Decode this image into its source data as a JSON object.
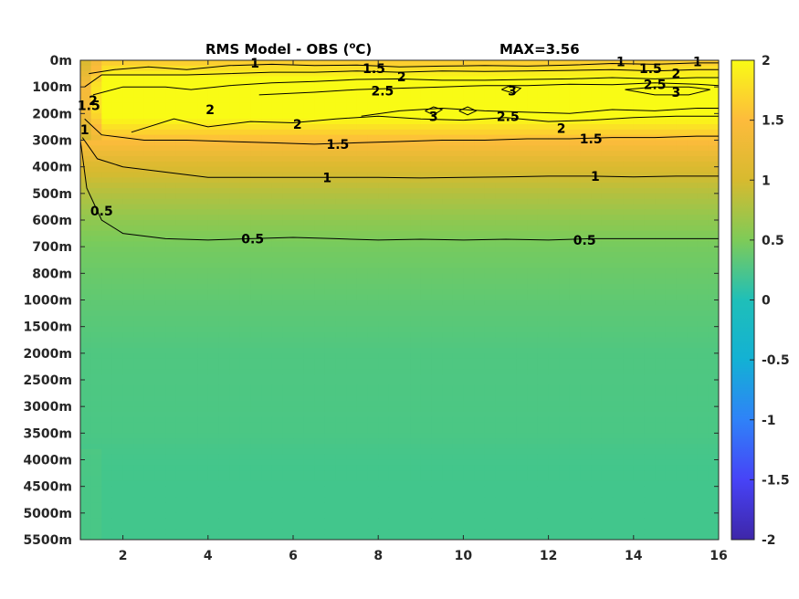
{
  "chart_data": {
    "type": "heatmap",
    "title": "RMS Model - OBS (",
    "title_sup": "o",
    "title_unit": "C)",
    "annotation": "MAX=3.56",
    "x_ticks": [
      "2",
      "4",
      "6",
      "8",
      "10",
      "12",
      "14",
      "16"
    ],
    "x_tick_values": [
      2,
      4,
      6,
      8,
      10,
      12,
      14,
      16
    ],
    "xlim": [
      1,
      16
    ],
    "depth_labels": [
      "0m",
      "100m",
      "200m",
      "300m",
      "400m",
      "500m",
      "600m",
      "700m",
      "800m",
      "1000m",
      "1500m",
      "2000m",
      "2500m",
      "3000m",
      "3500m",
      "4000m",
      "4500m",
      "5000m",
      "5500m"
    ],
    "colorbar_ticks": [
      "2",
      "1.5",
      "1",
      "0.5",
      "0",
      "-0.5",
      "-1",
      "-1.5",
      "-2"
    ],
    "colorbar_values": [
      2,
      1.5,
      1,
      0.5,
      0,
      -0.5,
      -1,
      -1.5,
      -2
    ],
    "clim": [
      -2,
      2
    ],
    "colormap": [
      "#3e26a8",
      "#4743f7",
      "#2f82f8",
      "#13b1d4",
      "#2bc4a0",
      "#7ecb58",
      "#d7ba2f",
      "#fdbb3c",
      "#f9fb15"
    ],
    "depth_profile_rms": [
      1.6,
      2.2,
      2.1,
      1.5,
      1.05,
      0.8,
      0.6,
      0.45,
      0.38,
      0.32,
      0.27,
      0.22,
      0.21,
      0.2,
      0.19,
      0.15,
      0.14,
      0.14,
      0.14
    ],
    "contour_labels": [
      {
        "text": "1",
        "x": 5.1,
        "depth_index": 0.1
      },
      {
        "text": "1.5",
        "x": 7.9,
        "depth_index": 0.3
      },
      {
        "text": "2",
        "x": 8.55,
        "depth_index": 0.62
      },
      {
        "text": "1",
        "x": 13.7,
        "depth_index": 0.05
      },
      {
        "text": "1.5",
        "x": 14.4,
        "depth_index": 0.3
      },
      {
        "text": "2",
        "x": 15.0,
        "depth_index": 0.5
      },
      {
        "text": "1",
        "x": 15.5,
        "depth_index": 0.05
      },
      {
        "text": "2.5",
        "x": 14.5,
        "depth_index": 0.9
      },
      {
        "text": "3",
        "x": 15.0,
        "depth_index": 1.2
      },
      {
        "text": "2.5",
        "x": 8.1,
        "depth_index": 1.15
      },
      {
        "text": "3",
        "x": 11.15,
        "depth_index": 1.15
      },
      {
        "text": "2",
        "x": 1.3,
        "depth_index": 1.5
      },
      {
        "text": "2",
        "x": 4.05,
        "depth_index": 1.85
      },
      {
        "text": "3",
        "x": 9.3,
        "depth_index": 2.1
      },
      {
        "text": "2.5",
        "x": 11.05,
        "depth_index": 2.1
      },
      {
        "text": "2",
        "x": 6.1,
        "depth_index": 2.4
      },
      {
        "text": "2",
        "x": 12.3,
        "depth_index": 2.55
      },
      {
        "text": "1.5",
        "x": 1.2,
        "depth_index": 1.7
      },
      {
        "text": "1",
        "x": 1.1,
        "depth_index": 2.6
      },
      {
        "text": "1.5",
        "x": 7.05,
        "depth_index": 3.15
      },
      {
        "text": "1.5",
        "x": 13.0,
        "depth_index": 2.95
      },
      {
        "text": "1",
        "x": 6.8,
        "depth_index": 4.4
      },
      {
        "text": "1",
        "x": 13.1,
        "depth_index": 4.35
      },
      {
        "text": "0.5",
        "x": 1.5,
        "depth_index": 5.65
      },
      {
        "text": "0.5",
        "x": 5.05,
        "depth_index": 6.7
      },
      {
        "text": "0.5",
        "x": 12.85,
        "depth_index": 6.75
      }
    ],
    "contour_lines": [
      {
        "level": 1,
        "points": [
          [
            1.2,
            0.5
          ],
          [
            1.8,
            0.35
          ],
          [
            2.6,
            0.25
          ],
          [
            3.5,
            0.35
          ],
          [
            4.5,
            0.2
          ],
          [
            5.5,
            0.15
          ],
          [
            6.5,
            0.2
          ],
          [
            7.5,
            0.18
          ],
          [
            8.5,
            0.25
          ],
          [
            9.5,
            0.22
          ],
          [
            10.5,
            0.2
          ],
          [
            11.5,
            0.22
          ],
          [
            12.5,
            0.18
          ],
          [
            13.5,
            0.12
          ],
          [
            14.5,
            0.15
          ],
          [
            15.5,
            0.1
          ],
          [
            16,
            0.1
          ]
        ]
      },
      {
        "level": 1.5,
        "points": [
          [
            1.1,
            1.0
          ],
          [
            1.5,
            0.55
          ],
          [
            2.5,
            0.55
          ],
          [
            3.5,
            0.55
          ],
          [
            4.5,
            0.5
          ],
          [
            5.5,
            0.45
          ],
          [
            6.5,
            0.45
          ],
          [
            7.5,
            0.4
          ],
          [
            8.5,
            0.45
          ],
          [
            9.5,
            0.4
          ],
          [
            10.5,
            0.42
          ],
          [
            11.5,
            0.4
          ],
          [
            12.5,
            0.38
          ],
          [
            13.5,
            0.35
          ],
          [
            14.5,
            0.4
          ],
          [
            15.5,
            0.35
          ],
          [
            16,
            0.35
          ]
        ]
      },
      {
        "level": 2,
        "points": [
          [
            1.3,
            1.3
          ],
          [
            2.0,
            1.0
          ],
          [
            3.0,
            1.0
          ],
          [
            3.6,
            1.1
          ],
          [
            4.5,
            0.95
          ],
          [
            5.5,
            0.85
          ],
          [
            6.5,
            0.8
          ],
          [
            7.5,
            0.72
          ],
          [
            8.5,
            0.7
          ],
          [
            9.5,
            0.75
          ],
          [
            10.5,
            0.75
          ],
          [
            11.5,
            0.72
          ],
          [
            12.5,
            0.7
          ],
          [
            13.5,
            0.65
          ],
          [
            14.5,
            0.7
          ],
          [
            15.5,
            0.65
          ],
          [
            16,
            0.65
          ]
        ]
      },
      {
        "level": 2.5,
        "points": [
          [
            5.2,
            1.3
          ],
          [
            6.5,
            1.2
          ],
          [
            7.5,
            1.1
          ],
          [
            8.5,
            1.05
          ],
          [
            9.5,
            1.0
          ],
          [
            10.5,
            0.95
          ],
          [
            11.5,
            0.95
          ],
          [
            12.5,
            0.9
          ],
          [
            13.5,
            0.92
          ],
          [
            14.5,
            0.85
          ],
          [
            15.5,
            0.9
          ],
          [
            16,
            0.95
          ]
        ]
      },
      {
        "level": 2,
        "points": [
          [
            2.2,
            2.7
          ],
          [
            3.2,
            2.2
          ],
          [
            4.0,
            2.5
          ],
          [
            5.0,
            2.3
          ],
          [
            6.0,
            2.35
          ],
          [
            7.0,
            2.2
          ],
          [
            8.0,
            2.1
          ],
          [
            9.0,
            2.2
          ],
          [
            10.0,
            2.25
          ],
          [
            11.0,
            2.15
          ],
          [
            12.0,
            2.3
          ],
          [
            13.0,
            2.25
          ],
          [
            14.0,
            2.15
          ],
          [
            15.0,
            2.1
          ],
          [
            16,
            2.1
          ]
        ]
      },
      {
        "level": 2.5,
        "points": [
          [
            7.6,
            2.1
          ],
          [
            8.5,
            1.9
          ],
          [
            9.5,
            1.8
          ],
          [
            10.5,
            1.9
          ],
          [
            11.5,
            1.95
          ],
          [
            12.5,
            2.0
          ],
          [
            13.5,
            1.85
          ],
          [
            14.5,
            1.9
          ],
          [
            15.5,
            1.8
          ],
          [
            16,
            1.8
          ]
        ]
      },
      {
        "level": 1.5,
        "points": [
          [
            1.1,
            2.2
          ],
          [
            1.5,
            2.8
          ],
          [
            2.5,
            3.0
          ],
          [
            3.5,
            3.0
          ],
          [
            4.5,
            3.05
          ],
          [
            5.5,
            3.1
          ],
          [
            6.5,
            3.15
          ],
          [
            7.5,
            3.1
          ],
          [
            8.5,
            3.05
          ],
          [
            9.5,
            3.0
          ],
          [
            10.5,
            3.0
          ],
          [
            11.5,
            2.95
          ],
          [
            12.5,
            2.95
          ],
          [
            13.5,
            2.9
          ],
          [
            14.5,
            2.9
          ],
          [
            15.5,
            2.85
          ],
          [
            16,
            2.85
          ]
        ]
      },
      {
        "level": 1,
        "points": [
          [
            1.05,
            2.9
          ],
          [
            1.4,
            3.7
          ],
          [
            2.0,
            4.0
          ],
          [
            3.0,
            4.2
          ],
          [
            4.0,
            4.4
          ],
          [
            5.0,
            4.4
          ],
          [
            6.0,
            4.4
          ],
          [
            7.0,
            4.4
          ],
          [
            8.0,
            4.4
          ],
          [
            9.0,
            4.42
          ],
          [
            10.0,
            4.4
          ],
          [
            11.0,
            4.38
          ],
          [
            12.0,
            4.35
          ],
          [
            13.0,
            4.35
          ],
          [
            14.0,
            4.38
          ],
          [
            15.0,
            4.35
          ],
          [
            16,
            4.35
          ]
        ]
      },
      {
        "level": 0.5,
        "points": [
          [
            1.0,
            3.0
          ],
          [
            1.15,
            4.8
          ],
          [
            1.5,
            6.0
          ],
          [
            2.0,
            6.5
          ],
          [
            3.0,
            6.7
          ],
          [
            4.0,
            6.75
          ],
          [
            5.0,
            6.7
          ],
          [
            6.0,
            6.65
          ],
          [
            7.0,
            6.7
          ],
          [
            8.0,
            6.75
          ],
          [
            9.0,
            6.72
          ],
          [
            10.0,
            6.75
          ],
          [
            11.0,
            6.72
          ],
          [
            12.0,
            6.75
          ],
          [
            13.0,
            6.7
          ],
          [
            14.0,
            6.7
          ],
          [
            15.0,
            6.7
          ],
          [
            16,
            6.7
          ]
        ]
      },
      {
        "level": 3,
        "points": [
          [
            9.1,
            1.9
          ],
          [
            9.3,
            2.05
          ],
          [
            9.5,
            1.85
          ],
          [
            9.3,
            1.75
          ],
          [
            9.1,
            1.9
          ]
        ]
      },
      {
        "level": 3,
        "points": [
          [
            10.9,
            1.1
          ],
          [
            11.2,
            1.25
          ],
          [
            11.35,
            1.05
          ],
          [
            11.1,
            0.95
          ],
          [
            10.9,
            1.1
          ]
        ]
      },
      {
        "level": 3,
        "points": [
          [
            9.9,
            1.9
          ],
          [
            10.1,
            2.05
          ],
          [
            10.3,
            1.9
          ],
          [
            10.1,
            1.75
          ],
          [
            9.9,
            1.9
          ]
        ]
      },
      {
        "level": 3,
        "points": [
          [
            13.8,
            1.1
          ],
          [
            14.5,
            1.0
          ],
          [
            15.3,
            1.0
          ],
          [
            15.8,
            1.1
          ],
          [
            15.3,
            1.3
          ],
          [
            14.5,
            1.3
          ],
          [
            13.8,
            1.1
          ]
        ]
      }
    ]
  }
}
